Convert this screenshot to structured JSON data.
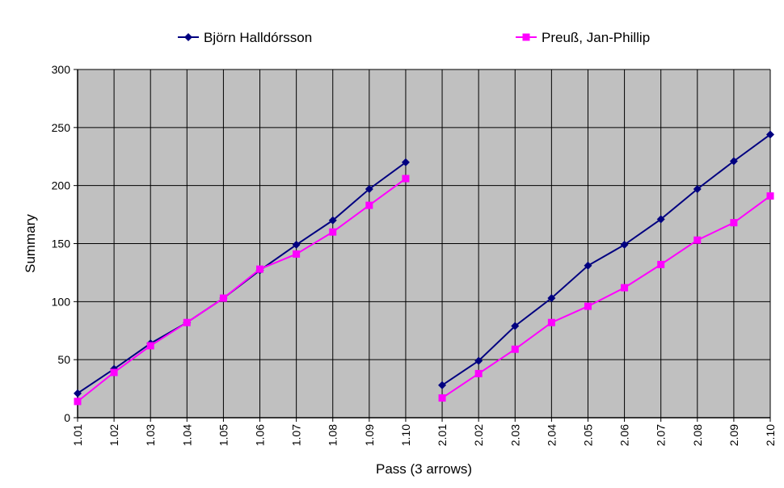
{
  "chart_data": {
    "type": "line",
    "title": "",
    "xlabel": "Pass (3 arrows)",
    "ylabel": "Summary",
    "ylim": [
      0,
      300
    ],
    "y_ticks": [
      0,
      50,
      100,
      150,
      200,
      250,
      300
    ],
    "grid": true,
    "legend_position": "top",
    "plot_background": "#c0c0c0",
    "categories": [
      "1.01",
      "1.02",
      "1.03",
      "1.04",
      "1.05",
      "1.06",
      "1.07",
      "1.08",
      "1.09",
      "1.10",
      "2.01",
      "2.02",
      "2.03",
      "2.04",
      "2.05",
      "2.06",
      "2.07",
      "2.08",
      "2.09",
      "2.10"
    ],
    "series": [
      {
        "name": "Björn Halldórsson",
        "color": "#000080",
        "marker": "diamond",
        "values": [
          21,
          42,
          64,
          82,
          103,
          127,
          149,
          170,
          197,
          220,
          28,
          49,
          79,
          103,
          131,
          149,
          171,
          197,
          221,
          244
        ]
      },
      {
        "name": "Preuß, Jan-Phillip",
        "color": "#ff00ff",
        "marker": "square",
        "values": [
          14,
          39,
          62,
          82,
          103,
          128,
          141,
          160,
          183,
          206,
          17,
          38,
          59,
          82,
          96,
          112,
          132,
          153,
          168,
          191
        ]
      }
    ]
  }
}
